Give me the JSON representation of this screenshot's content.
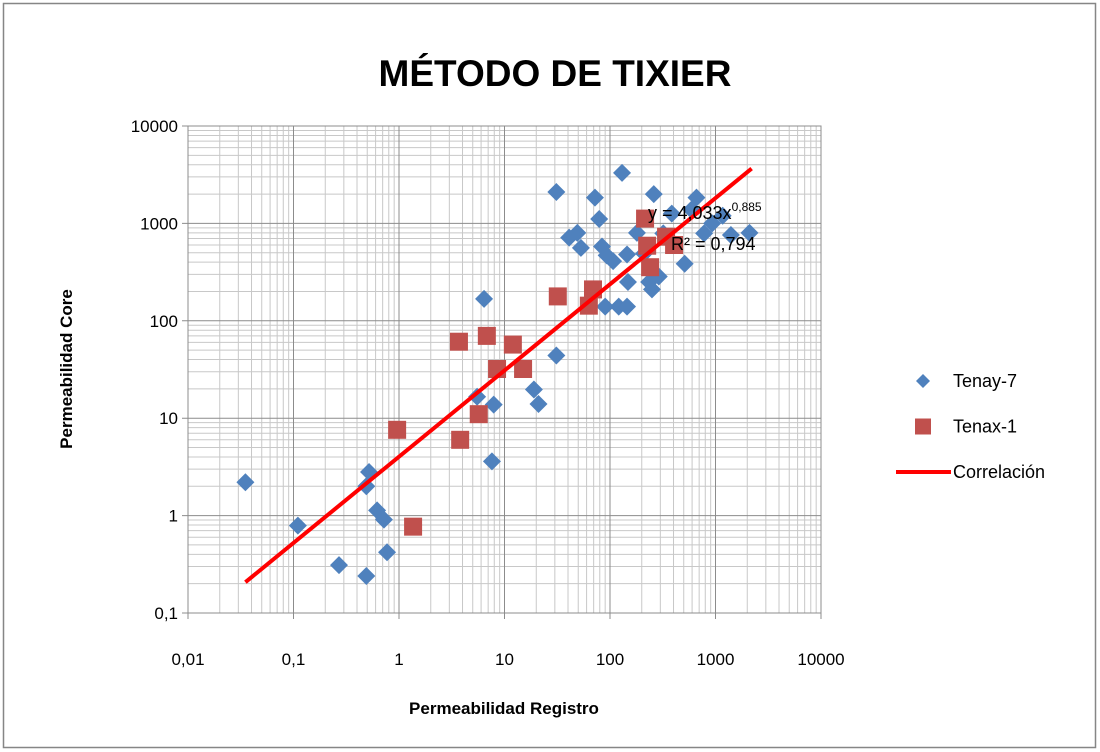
{
  "chart_data": {
    "type": "scatter",
    "title": "MÉTODO DE TIXIER",
    "xlabel": "Permeabilidad Registro",
    "ylabel": "Permeabilidad Core",
    "log_x": true,
    "log_y": true,
    "grid": true,
    "minor_grid": true,
    "legend": "right",
    "xlim": [
      0.01,
      10000
    ],
    "ylim": [
      0.1,
      10000
    ],
    "xticks": [
      {
        "value": 0.01,
        "label": "0,01"
      },
      {
        "value": 0.1,
        "label": "0,1"
      },
      1,
      10,
      100,
      1000,
      10000
    ],
    "yticks": [
      {
        "value": 0.1,
        "label": "0,1"
      },
      1,
      10,
      100,
      1000,
      10000
    ],
    "annotations": [
      {
        "text": "y = 4,033x",
        "sup": "0,885"
      },
      {
        "text": "R² = 0,794"
      }
    ],
    "series": [
      {
        "name": "Tenay-7",
        "color": "#4f81bd",
        "marker": "diamond",
        "x": [
          0.035,
          0.11,
          0.27,
          0.49,
          0.49,
          0.52,
          0.62,
          0.72,
          0.77,
          5.5,
          6.4,
          7.9,
          7.6,
          19,
          21,
          31,
          31,
          41,
          49,
          53,
          72,
          79,
          84,
          93,
          107,
          90,
          121,
          145,
          130,
          145,
          148,
          180,
          210,
          235,
          260,
          250,
          290,
          320,
          385,
          510,
          590,
          660,
          780,
          930,
          1170,
          1400,
          2100
        ],
        "values": [
          2.2,
          0.79,
          0.31,
          0.24,
          2.0,
          2.8,
          1.13,
          0.91,
          0.42,
          16.6,
          168,
          13.8,
          3.6,
          19.7,
          14,
          44,
          2100,
          715,
          800,
          560,
          1840,
          1110,
          580,
          470,
          410,
          140,
          140,
          140,
          3300,
          480,
          250,
          800,
          490,
          250,
          2000,
          210,
          285,
          790,
          1260,
          385,
          1380,
          1840,
          790,
          1000,
          1200,
          760,
          800
        ]
      },
      {
        "name": "Tenax-1",
        "color": "#c0504d",
        "marker": "square",
        "x": [
          1.36,
          0.96,
          3.7,
          3.8,
          5.7,
          6.8,
          8.5,
          12,
          15,
          32,
          63,
          69,
          215,
          240,
          225,
          340,
          405
        ],
        "values": [
          0.77,
          7.6,
          61,
          6.0,
          11,
          70,
          32,
          57,
          32,
          178,
          143,
          210,
          1120,
          355,
          590,
          730,
          600
        ]
      },
      {
        "name": "Correlación",
        "color": "#ff0000",
        "type": "line",
        "x": [
          0.035,
          2200
        ],
        "values": [
          0.207,
          3660
        ]
      }
    ]
  }
}
